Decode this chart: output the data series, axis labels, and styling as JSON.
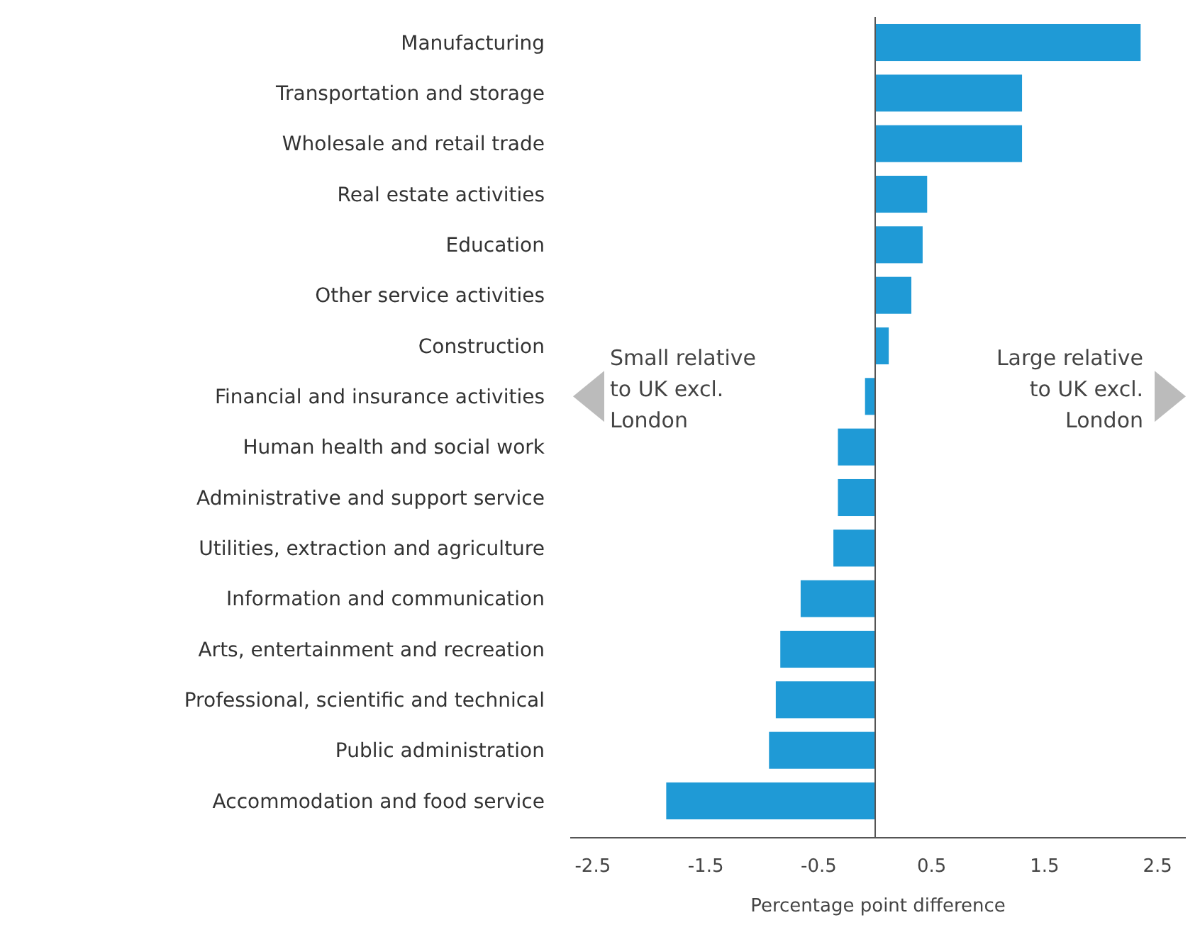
{
  "chart_data": {
    "type": "bar",
    "orientation": "horizontal",
    "xlabel": "Percentage point difference",
    "categories": [
      "Manufacturing",
      "Transportation and storage",
      "Wholesale and retail trade",
      "Real estate activities",
      "Education",
      "Other service activities",
      "Construction",
      "Financial and insurance activities",
      "Human health and social work",
      "Administrative and support service",
      "Utilities, extraction and agriculture",
      "Information and communication",
      "Arts, entertainment and recreation",
      "Professional, scientific and technical",
      "Public administration",
      "Accommodation and food service"
    ],
    "values": [
      2.35,
      1.3,
      1.3,
      0.46,
      0.42,
      0.32,
      0.12,
      -0.09,
      -0.33,
      -0.33,
      -0.37,
      -0.66,
      -0.84,
      -0.88,
      -0.94,
      -1.85
    ],
    "color": "#1f9ad6",
    "xlim": [
      -2.7,
      2.75
    ],
    "xticks": [
      -2.5,
      -1.5,
      -0.5,
      0.5,
      1.5,
      2.5
    ],
    "grid": false,
    "annotations": [
      "Small relative to UK excl. London",
      "Large relative to UK excl. London"
    ]
  }
}
